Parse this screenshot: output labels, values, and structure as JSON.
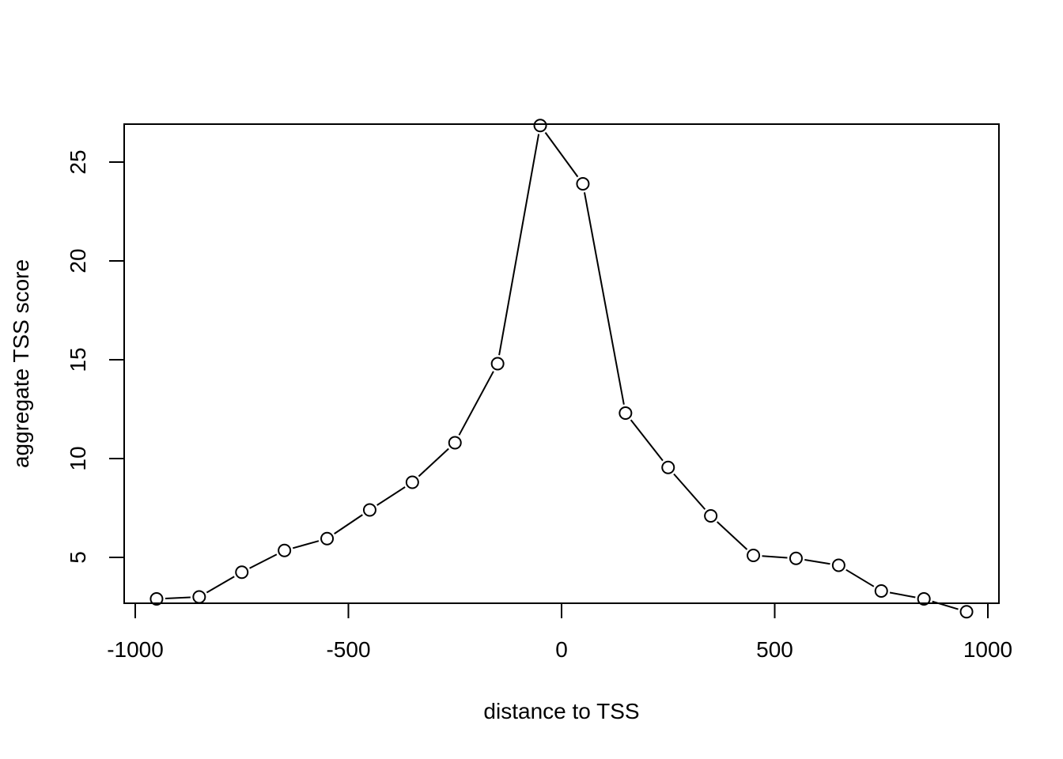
{
  "chart_data": {
    "type": "line",
    "markers": "open-circle",
    "xlabel": "distance to TSS",
    "ylabel": "aggregate TSS score",
    "xlim": [
      -1000,
      1000
    ],
    "ylim": [
      2,
      27
    ],
    "x_ticks": [
      -1000,
      -500,
      0,
      500,
      1000
    ],
    "y_ticks": [
      5,
      10,
      15,
      20,
      25
    ],
    "x_tick_labels": [
      "-1000",
      "-500",
      "0",
      "500",
      "1000"
    ],
    "y_tick_labels": [
      "5",
      "10",
      "15",
      "20",
      "25"
    ],
    "grid": false,
    "legend": "none",
    "series": [
      {
        "x": [
          -950,
          -850,
          -750,
          -650,
          -550,
          -450,
          -350,
          -250,
          -150,
          -50,
          50,
          150,
          250,
          350,
          450,
          550,
          650,
          750,
          850,
          950
        ],
        "y": [
          2.9,
          3.0,
          4.25,
          5.35,
          5.95,
          7.4,
          8.8,
          10.8,
          14.8,
          26.85,
          23.9,
          12.3,
          9.55,
          7.1,
          5.1,
          4.95,
          4.6,
          3.3,
          2.9,
          2.25
        ]
      }
    ]
  }
}
